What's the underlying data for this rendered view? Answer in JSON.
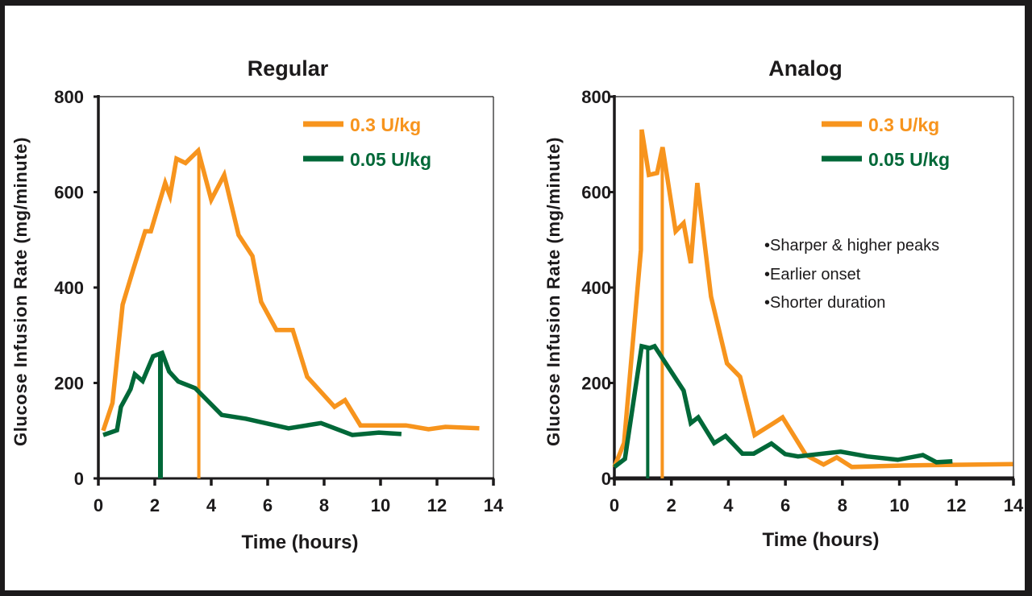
{
  "colors": {
    "high_dose": "#f7941d",
    "low_dose": "#006838",
    "text": "#1c1a1b",
    "frame": "#1c1a1b"
  },
  "chart_data": [
    {
      "type": "line",
      "title": "Regular",
      "xlabel": "Time (hours)",
      "ylabel": "Glucose Infusion Rate (mg/minute)",
      "xlim": [
        0,
        14
      ],
      "ylim": [
        0,
        800
      ],
      "xticks": [
        0,
        2,
        4,
        6,
        8,
        10,
        12,
        14
      ],
      "yticks": [
        0,
        200,
        400,
        600,
        800
      ],
      "grid": false,
      "legend_position": "top-right",
      "series": [
        {
          "name": "0.3 U/kg",
          "color": "#f7941d",
          "peak_marker_x": 3.56,
          "x": [
            0.17,
            0.5,
            0.86,
            1.23,
            1.66,
            1.86,
            2.37,
            2.54,
            2.77,
            3.09,
            3.54,
            4.0,
            4.46,
            4.97,
            5.46,
            5.77,
            6.31,
            6.89,
            7.4,
            8.37,
            8.74,
            9.29,
            10.9,
            11.7,
            12.3,
            13.5
          ],
          "y": [
            100,
            158,
            364,
            437,
            518,
            518,
            619,
            592,
            670,
            661,
            687,
            584,
            636,
            510,
            466,
            370,
            311,
            311,
            213,
            150,
            164,
            111,
            111,
            103,
            108,
            105
          ]
        },
        {
          "name": "0.05 U/kg",
          "color": "#006838",
          "peak_marker_x": 2.2,
          "x": [
            0.17,
            0.66,
            0.8,
            1.14,
            1.29,
            1.57,
            1.94,
            2.26,
            2.51,
            2.83,
            3.43,
            4.37,
            5.23,
            6.74,
            7.89,
            9.0,
            9.94,
            10.74
          ],
          "y": [
            91,
            101,
            150,
            187,
            218,
            204,
            256,
            263,
            224,
            203,
            189,
            133,
            125,
            105,
            116,
            91,
            96,
            93
          ]
        }
      ]
    },
    {
      "type": "line",
      "title": "Analog",
      "xlabel": "Time (hours)",
      "ylabel": "Glucose Infusion Rate (mg/minute)",
      "xlim": [
        0,
        14
      ],
      "ylim": [
        0,
        800
      ],
      "xticks": [
        0,
        2,
        4,
        6,
        8,
        10,
        12,
        14
      ],
      "yticks": [
        0,
        200,
        400,
        600,
        800
      ],
      "grid": false,
      "legend_position": "top-right",
      "annotations": [
        "•Sharper & higher peaks",
        "•Earlier onset",
        "•Shorter duration"
      ],
      "series": [
        {
          "name": "0.3 U/kg",
          "color": "#f7941d",
          "peak_marker_x": 1.68,
          "x": [
            0,
            0.34,
            0.93,
            0.96,
            1.21,
            1.5,
            1.69,
            2.15,
            2.43,
            2.68,
            2.91,
            3.39,
            3.95,
            4.41,
            4.92,
            5.59,
            5.9,
            6.72,
            7.34,
            7.8,
            8.33,
            10.1,
            13.98
          ],
          "y": [
            24,
            74,
            479,
            731,
            636,
            640,
            694,
            518,
            535,
            451,
            619,
            381,
            241,
            213,
            91,
            116,
            128,
            49,
            29,
            44,
            24,
            27,
            30
          ]
        },
        {
          "name": "0.05 U/kg",
          "color": "#006838",
          "peak_marker_x": 1.17,
          "x": [
            0,
            0.37,
            0.96,
            1.24,
            1.41,
            2.43,
            2.68,
            2.94,
            3.5,
            3.9,
            4.49,
            4.89,
            5.51,
            5.99,
            6.44,
            7.94,
            8.87,
            9.94,
            10.82,
            11.3,
            11.86
          ],
          "y": [
            24,
            41,
            277,
            273,
            277,
            184,
            116,
            128,
            74,
            89,
            52,
            52,
            73,
            51,
            46,
            56,
            46,
            39,
            49,
            34,
            36
          ]
        }
      ]
    }
  ]
}
